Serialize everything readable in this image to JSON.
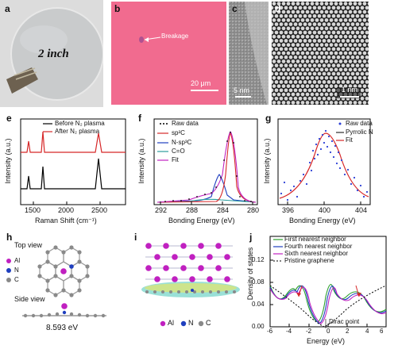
{
  "panels": {
    "a": {
      "letter": "a",
      "wafer_text": "2 inch"
    },
    "b": {
      "letter": "b",
      "annotation": "Breakage",
      "scale_bar": "20 μm",
      "bg_color": "#f16b8f"
    },
    "c": {
      "letter": "c",
      "scale_bar": "5 nm"
    },
    "d": {
      "letter": "d",
      "scale_bar": "1 nm"
    },
    "e": {
      "letter": "e",
      "xlabel": "Raman Shift (cm⁻¹)",
      "ylabel": "Intensity (a.u.)",
      "xticks": [
        "1500",
        "2000",
        "2500"
      ],
      "legend": [
        "Before N₂ plasma",
        "After N₂ plasma"
      ]
    },
    "f": {
      "letter": "f",
      "xlabel": "Bonding Energy (eV)",
      "ylabel": "Intensity (a.u.)",
      "xticks": [
        "292",
        "288",
        "284",
        "280"
      ],
      "legend": [
        "Raw data",
        "sp²C",
        "N-sp³C",
        "C=O",
        "Fit"
      ]
    },
    "g": {
      "letter": "g",
      "xlabel": "Bonding Energy (eV)",
      "ylabel": "Intensity (a.u.)",
      "xticks": [
        "396",
        "400",
        "404"
      ],
      "legend": [
        "Raw data",
        "Pyrrolic N",
        "Fit"
      ]
    },
    "h": {
      "letter": "h",
      "top_view": "Top view",
      "side_view": "Side view",
      "energy": "8.593 eV",
      "legend": [
        "Al",
        "N",
        "C"
      ]
    },
    "i": {
      "letter": "i",
      "legend": [
        "Al",
        "N",
        "C"
      ]
    },
    "j": {
      "letter": "j",
      "xlabel": "Energy (eV)",
      "ylabel": "Density of states",
      "xticks": [
        "-6",
        "-4",
        "-2",
        "0",
        "2",
        "4",
        "6"
      ],
      "yticks": [
        "0.00",
        "0.04",
        "0.08",
        "0.12"
      ],
      "legend": [
        "First nearest neighbor",
        "Fourth nearest neighbor",
        "Sixth nearest neighbor",
        "Pristine graphene"
      ],
      "annotation": "Dirac point"
    }
  },
  "colors": {
    "black": "#000000",
    "red": "#d62728",
    "blue": "#1f3fbf",
    "teal": "#2a9d9d",
    "magenta": "#c020c0",
    "green": "#2ca02c",
    "dot_blue": "#2b3fd6"
  }
}
